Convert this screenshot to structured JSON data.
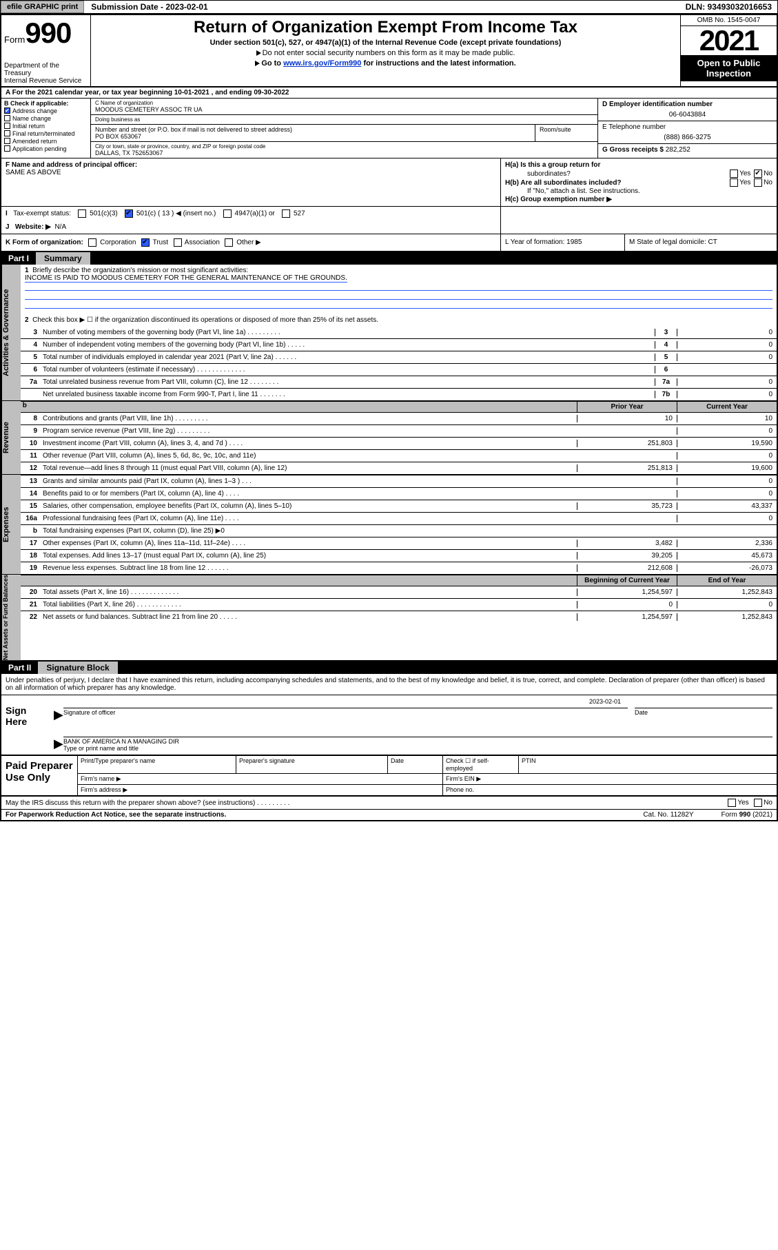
{
  "topbar": {
    "efile_btn": "efile GRAPHIC print",
    "submission": "Submission Date - 2023-02-01",
    "dln": "DLN: 93493032016653"
  },
  "header": {
    "form_prefix": "Form",
    "form_no": "990",
    "dept": "Department of the Treasury",
    "irs": "Internal Revenue Service",
    "title": "Return of Organization Exempt From Income Tax",
    "sub1": "Under section 501(c), 527, or 4947(a)(1) of the Internal Revenue Code (except private foundations)",
    "sub2": "Do not enter social security numbers on this form as it may be made public.",
    "sub3a": "Go to ",
    "sub3_link": "www.irs.gov/Form990",
    "sub3b": " for instructions and the latest information.",
    "omb": "OMB No. 1545-0047",
    "year": "2021",
    "open": "Open to Public Inspection"
  },
  "rowA": "A For the 2021 calendar year, or tax year beginning 10-01-2021   , and ending 09-30-2022",
  "boxB": {
    "hdr": "B Check if applicable:",
    "items": [
      {
        "label": "Address change",
        "checked": true
      },
      {
        "label": "Name change",
        "checked": false
      },
      {
        "label": "Initial return",
        "checked": false
      },
      {
        "label": "Final return/terminated",
        "checked": false
      },
      {
        "label": "Amended return",
        "checked": false
      },
      {
        "label": "Application pending",
        "checked": false
      }
    ]
  },
  "boxC": {
    "name_lbl": "C Name of organization",
    "name": "MOODUS CEMETERY ASSOC TR UA",
    "dba_lbl": "Doing business as",
    "dba": "",
    "addr_lbl": "Number and street (or P.O. box if mail is not delivered to street address)",
    "room_lbl": "Room/suite",
    "addr": "PO BOX 653067",
    "city_lbl": "City or town, state or province, country, and ZIP or foreign postal code",
    "city": "DALLAS, TX   752653067"
  },
  "boxD": {
    "lbl": "D Employer identification number",
    "val": "06-6043884"
  },
  "boxE": {
    "lbl": "E Telephone number",
    "val": "(888) 866-3275"
  },
  "boxG": {
    "lbl": "G Gross receipts $",
    "val": "282,252"
  },
  "boxF": {
    "lbl": "F Name and address of principal officer:",
    "val": "SAME AS ABOVE"
  },
  "boxH": {
    "a": "H(a)  Is this a group return for",
    "a2": "subordinates?",
    "b": "H(b)  Are all subordinates included?",
    "note": "If \"No,\" attach a list. See instructions.",
    "c": "H(c)  Group exemption number ▶"
  },
  "yn": {
    "yes": "Yes",
    "no": "No"
  },
  "rowI": {
    "lbl": "Tax-exempt status:",
    "o1": "501(c)(3)",
    "o2": "501(c) ( 13 ) ◀ (insert no.)",
    "o3": "4947(a)(1) or",
    "o4": "527"
  },
  "rowJ": {
    "lbl": "Website: ▶",
    "val": "N/A"
  },
  "rowK": {
    "lbl": "K Form of organization:",
    "opts": [
      "Corporation",
      "Trust",
      "Association",
      "Other ▶"
    ],
    "checked_idx": 1,
    "L": "L Year of formation: 1985",
    "M": "M State of legal domicile: CT"
  },
  "part1": {
    "num": "Part I",
    "title": "Summary"
  },
  "mission": {
    "q": "Briefly describe the organization's mission or most significant activities:",
    "a": "INCOME IS PAID TO MOODUS CEMETERY FOR THE GENERAL MAINTENANCE OF THE GROUNDS."
  },
  "line2": "Check this box ▶ ☐  if the organization discontinued its operations or disposed of more than 25% of its net assets.",
  "gov_lines": [
    {
      "n": "3",
      "t": "Number of voting members of the governing body (Part VI, line 1a)   .    .    .    .    .    .    .    .    .",
      "b": "3",
      "v": "0"
    },
    {
      "n": "4",
      "t": "Number of independent voting members of the governing body (Part VI, line 1b)   .    .    .    .    .",
      "b": "4",
      "v": "0"
    },
    {
      "n": "5",
      "t": "Total number of individuals employed in calendar year 2021 (Part V, line 2a)   .    .    .    .    .    .",
      "b": "5",
      "v": "0"
    },
    {
      "n": "6",
      "t": "Total number of volunteers (estimate if necessary)   .    .    .    .    .    .    .    .    .    .    .    .    .",
      "b": "6",
      "v": ""
    },
    {
      "n": "7a",
      "t": "Total unrelated business revenue from Part VIII, column (C), line 12   .    .    .    .    .    .    .    .",
      "b": "7a",
      "v": "0"
    },
    {
      "n": "",
      "t": "Net unrelated business taxable income from Form 990-T, Part I, line 11   .    .    .    .    .    .    .",
      "b": "7b",
      "v": "0"
    }
  ],
  "col_hdr": {
    "prior": "Prior Year",
    "curr": "Current Year"
  },
  "rev_lines": [
    {
      "n": "8",
      "t": "Contributions and grants (Part VIII, line 1h)   .    .    .    .    .    .    .    .    .",
      "p": "10",
      "c": "10"
    },
    {
      "n": "9",
      "t": "Program service revenue (Part VIII, line 2g)   .    .    .    .    .    .    .    .    .",
      "p": "",
      "c": "0"
    },
    {
      "n": "10",
      "t": "Investment income (Part VIII, column (A), lines 3, 4, and 7d )   .    .    .    .",
      "p": "251,803",
      "c": "19,590"
    },
    {
      "n": "11",
      "t": "Other revenue (Part VIII, column (A), lines 5, 6d, 8c, 9c, 10c, and 11e)",
      "p": "",
      "c": "0"
    },
    {
      "n": "12",
      "t": "Total revenue—add lines 8 through 11 (must equal Part VIII, column (A), line 12)",
      "p": "251,813",
      "c": "19,600"
    }
  ],
  "exp_lines": [
    {
      "n": "13",
      "t": "Grants and similar amounts paid (Part IX, column (A), lines 1–3 )   .    .    .",
      "p": "",
      "c": "0"
    },
    {
      "n": "14",
      "t": "Benefits paid to or for members (Part IX, column (A), line 4)   .    .    .    .",
      "p": "",
      "c": "0"
    },
    {
      "n": "15",
      "t": "Salaries, other compensation, employee benefits (Part IX, column (A), lines 5–10)",
      "p": "35,723",
      "c": "43,337"
    },
    {
      "n": "16a",
      "t": "Professional fundraising fees (Part IX, column (A), line 11e)   .    .    .    .",
      "p": "",
      "c": "0"
    },
    {
      "n": "b",
      "t": "Total fundraising expenses (Part IX, column (D), line 25) ▶0",
      "p": "sh",
      "c": "sh"
    },
    {
      "n": "17",
      "t": "Other expenses (Part IX, column (A), lines 11a–11d, 11f–24e)   .    .    .    .",
      "p": "3,482",
      "c": "2,336"
    },
    {
      "n": "18",
      "t": "Total expenses. Add lines 13–17 (must equal Part IX, column (A), line 25)",
      "p": "39,205",
      "c": "45,673"
    },
    {
      "n": "19",
      "t": "Revenue less expenses. Subtract line 18 from line 12   .    .    .    .    .    .",
      "p": "212,608",
      "c": "-26,073"
    }
  ],
  "na_hdr": {
    "beg": "Beginning of Current Year",
    "end": "End of Year"
  },
  "na_lines": [
    {
      "n": "20",
      "t": "Total assets (Part X, line 16)   .    .    .    .    .    .    .    .    .    .    .    .    .",
      "p": "1,254,597",
      "c": "1,252,843"
    },
    {
      "n": "21",
      "t": "Total liabilities (Part X, line 26)   .    .    .    .    .    .    .    .    .    .    .    .",
      "p": "0",
      "c": "0"
    },
    {
      "n": "22",
      "t": "Net assets or fund balances. Subtract line 21 from line 20   .    .    .    .    .",
      "p": "1,254,597",
      "c": "1,252,843"
    }
  ],
  "part2": {
    "num": "Part II",
    "title": "Signature Block"
  },
  "penalty": "Under penalties of perjury, I declare that I have examined this return, including accompanying schedules and statements, and to the best of my knowledge and belief, it is true, correct, and complete. Declaration of preparer (other than officer) is based on all information of which preparer has any knowledge.",
  "sign": {
    "lbl": "Sign Here",
    "date": "2023-02-01",
    "sig_lbl": "Signature of officer",
    "date_lbl": "Date",
    "name": "BANK OF AMERICA N A  MANAGING DIR",
    "name_lbl": "Type or print name and title"
  },
  "paid": {
    "lbl": "Paid Preparer Use Only",
    "h": [
      "Print/Type preparer's name",
      "Preparer's signature",
      "Date",
      "Check ☐ if self-employed",
      "PTIN"
    ],
    "firm_name": "Firm's name   ▶",
    "firm_ein": "Firm's EIN ▶",
    "firm_addr": "Firm's address ▶",
    "phone": "Phone no."
  },
  "footer": {
    "discuss": "May the IRS discuss this return with the preparer shown above? (see instructions)   .    .    .    .    .    .    .    .    .",
    "pra": "For Paperwork Reduction Act Notice, see the separate instructions.",
    "cat": "Cat. No. 11282Y",
    "form": "Form 990 (2021)"
  },
  "vtabs": {
    "gov": "Activities & Governance",
    "rev": "Revenue",
    "exp": "Expenses",
    "na": "Net Assets or Fund Balances"
  }
}
